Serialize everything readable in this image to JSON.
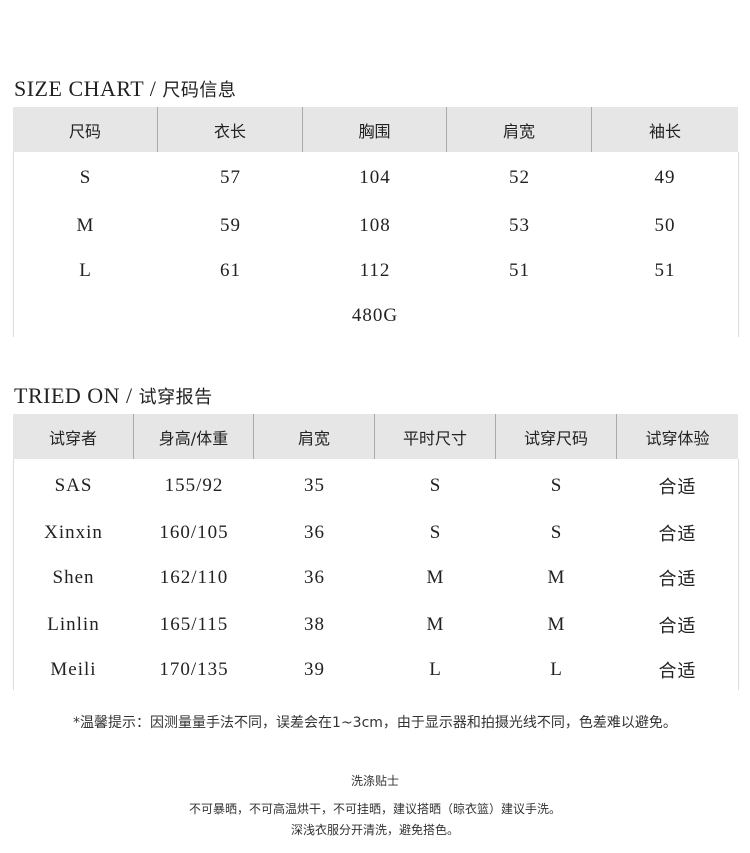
{
  "size_chart": {
    "title": "SIZE CHART /",
    "subtitle": "尺码信息",
    "headers": [
      "尺码",
      "衣长",
      "胸围",
      "肩宽",
      "袖长"
    ],
    "rows": [
      [
        "S",
        "57",
        "104",
        "52",
        "49"
      ],
      [
        "M",
        "59",
        "108",
        "53",
        "50"
      ],
      [
        "L",
        "61",
        "112",
        "51",
        "51"
      ]
    ],
    "footer": "480G"
  },
  "tried_on": {
    "title": "TRIED ON /",
    "subtitle": "试穿报告",
    "headers": [
      "试穿者",
      "身高/体重",
      "肩宽",
      "平时尺寸",
      "试穿尺码",
      "试穿体验"
    ],
    "rows": [
      [
        "SAS",
        "155/92",
        "35",
        "S",
        "S",
        "合适"
      ],
      [
        "Xinxin",
        "160/105",
        "36",
        "S",
        "S",
        "合适"
      ],
      [
        "Shen",
        "162/110",
        "36",
        "M",
        "M",
        "合适"
      ],
      [
        "Linlin",
        "165/115",
        "38",
        "M",
        "M",
        "合适"
      ],
      [
        "Meili",
        "170/135",
        "39",
        "L",
        "L",
        "合适"
      ]
    ]
  },
  "note": "*温馨提示：因测量量手法不同，误差会在1~3cm，由于显示器和拍摄光线不同，色差难以避免。",
  "care": {
    "title": "洗涤贴士",
    "lines": [
      "不可暴晒，不可高温烘干，不可挂晒，建议搭晒（晾衣篮）建议手洗。",
      "深浅衣服分开清洗，避免搭色。"
    ]
  }
}
